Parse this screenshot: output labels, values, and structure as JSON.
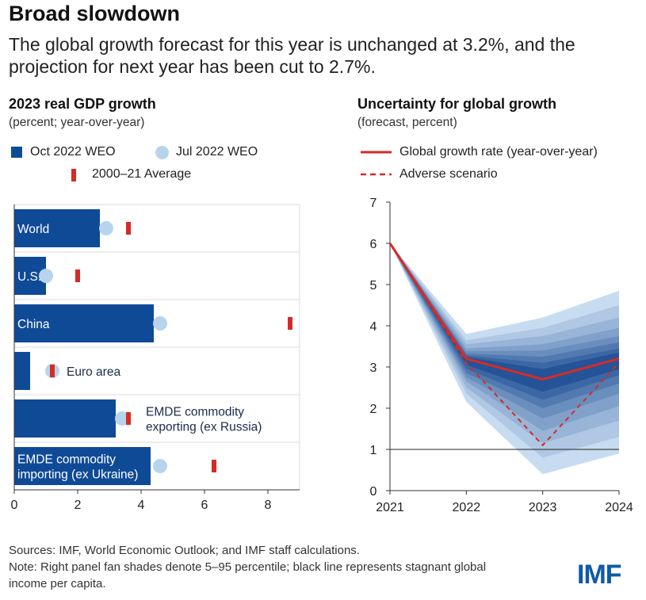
{
  "header": {
    "title": "Broad slowdown",
    "subtitle": "The global growth forecast for this year is unchanged at 3.2%, and the projection for next year has been cut to 2.7%."
  },
  "colors": {
    "oct": "#0f4a97",
    "jul": "#b8d4ec",
    "avg": "#d62b25",
    "fan_dark": "#16478f",
    "fan_light": "#c7dcf0"
  },
  "chart_data": [
    {
      "type": "bar",
      "title": "2023 real GDP growth",
      "subtitle": "(percent; year-over-year)",
      "legend": {
        "oct": "Oct 2022 WEO",
        "jul": "Jul 2022 WEO",
        "avg": "2000–21 Average"
      },
      "categories": [
        "World",
        "U.S.",
        "China",
        "Euro area",
        "EMDE commodity exporting (ex Russia)",
        "EMDE commodity importing (ex Ukraine)"
      ],
      "category_lines": [
        [
          "World"
        ],
        [
          "U.S."
        ],
        [
          "China"
        ],
        [
          "Euro area"
        ],
        [
          "EMDE commodity",
          "exporting (ex Russia)"
        ],
        [
          "EMDE commodity",
          "importing (ex Ukraine)"
        ]
      ],
      "series": [
        {
          "name": "Oct 2022 WEO",
          "values": [
            2.7,
            1.0,
            4.4,
            0.5,
            3.2,
            4.3
          ]
        },
        {
          "name": "Jul 2022 WEO",
          "values": [
            2.9,
            1.0,
            4.6,
            1.2,
            3.4,
            4.6
          ]
        },
        {
          "name": "2000–21 Average",
          "values": [
            3.6,
            2.0,
            8.7,
            1.2,
            3.6,
            6.3
          ]
        }
      ],
      "xlim": [
        0,
        9
      ],
      "xticks": [
        0,
        2,
        4,
        6,
        8
      ]
    },
    {
      "type": "line",
      "title": "Uncertainty for global growth",
      "subtitle": "(forecast, percent)",
      "legend": {
        "main": "Global growth rate (year-over-year)",
        "adverse": "Adverse scenario"
      },
      "x": [
        2021,
        2022,
        2023,
        2024
      ],
      "series": [
        {
          "name": "Global growth rate (year-over-year)",
          "values": [
            6.0,
            3.2,
            2.7,
            3.2
          ]
        },
        {
          "name": "Adverse scenario",
          "values": [
            6.0,
            3.1,
            1.1,
            3.1
          ]
        }
      ],
      "fan_bands": [
        {
          "lo": [
            6.0,
            2.15,
            0.4,
            0.9
          ],
          "hi": [
            6.0,
            3.8,
            4.2,
            4.85
          ]
        },
        {
          "lo": [
            6.0,
            2.35,
            0.8,
            1.3
          ],
          "hi": [
            6.0,
            3.65,
            3.95,
            4.5
          ]
        },
        {
          "lo": [
            6.0,
            2.5,
            1.15,
            1.7
          ],
          "hi": [
            6.0,
            3.55,
            3.75,
            4.2
          ]
        },
        {
          "lo": [
            6.0,
            2.65,
            1.45,
            2.05
          ],
          "hi": [
            6.0,
            3.45,
            3.55,
            3.95
          ]
        },
        {
          "lo": [
            6.0,
            2.75,
            1.75,
            2.35
          ],
          "hi": [
            6.0,
            3.38,
            3.4,
            3.75
          ]
        },
        {
          "lo": [
            6.0,
            2.85,
            2.0,
            2.6
          ],
          "hi": [
            6.0,
            3.32,
            3.25,
            3.6
          ]
        },
        {
          "lo": [
            6.0,
            2.95,
            2.2,
            2.8
          ],
          "hi": [
            6.0,
            3.28,
            3.1,
            3.45
          ]
        },
        {
          "lo": [
            6.0,
            3.05,
            2.4,
            2.95
          ],
          "hi": [
            6.0,
            3.24,
            2.95,
            3.35
          ]
        }
      ],
      "reference_line": 1,
      "ylim": [
        0,
        7
      ],
      "yticks": [
        0,
        1,
        2,
        3,
        4,
        5,
        6,
        7
      ],
      "xticks": [
        "2021",
        "2022",
        "2023",
        "2024"
      ]
    }
  ],
  "footer": {
    "sources": "Sources: IMF, World Economic Outlook; and IMF staff calculations.",
    "note": "Note: Right panel fan shades denote 5–95 percentile; black line represents stagnant global income per capita.",
    "logo": "IMF"
  }
}
